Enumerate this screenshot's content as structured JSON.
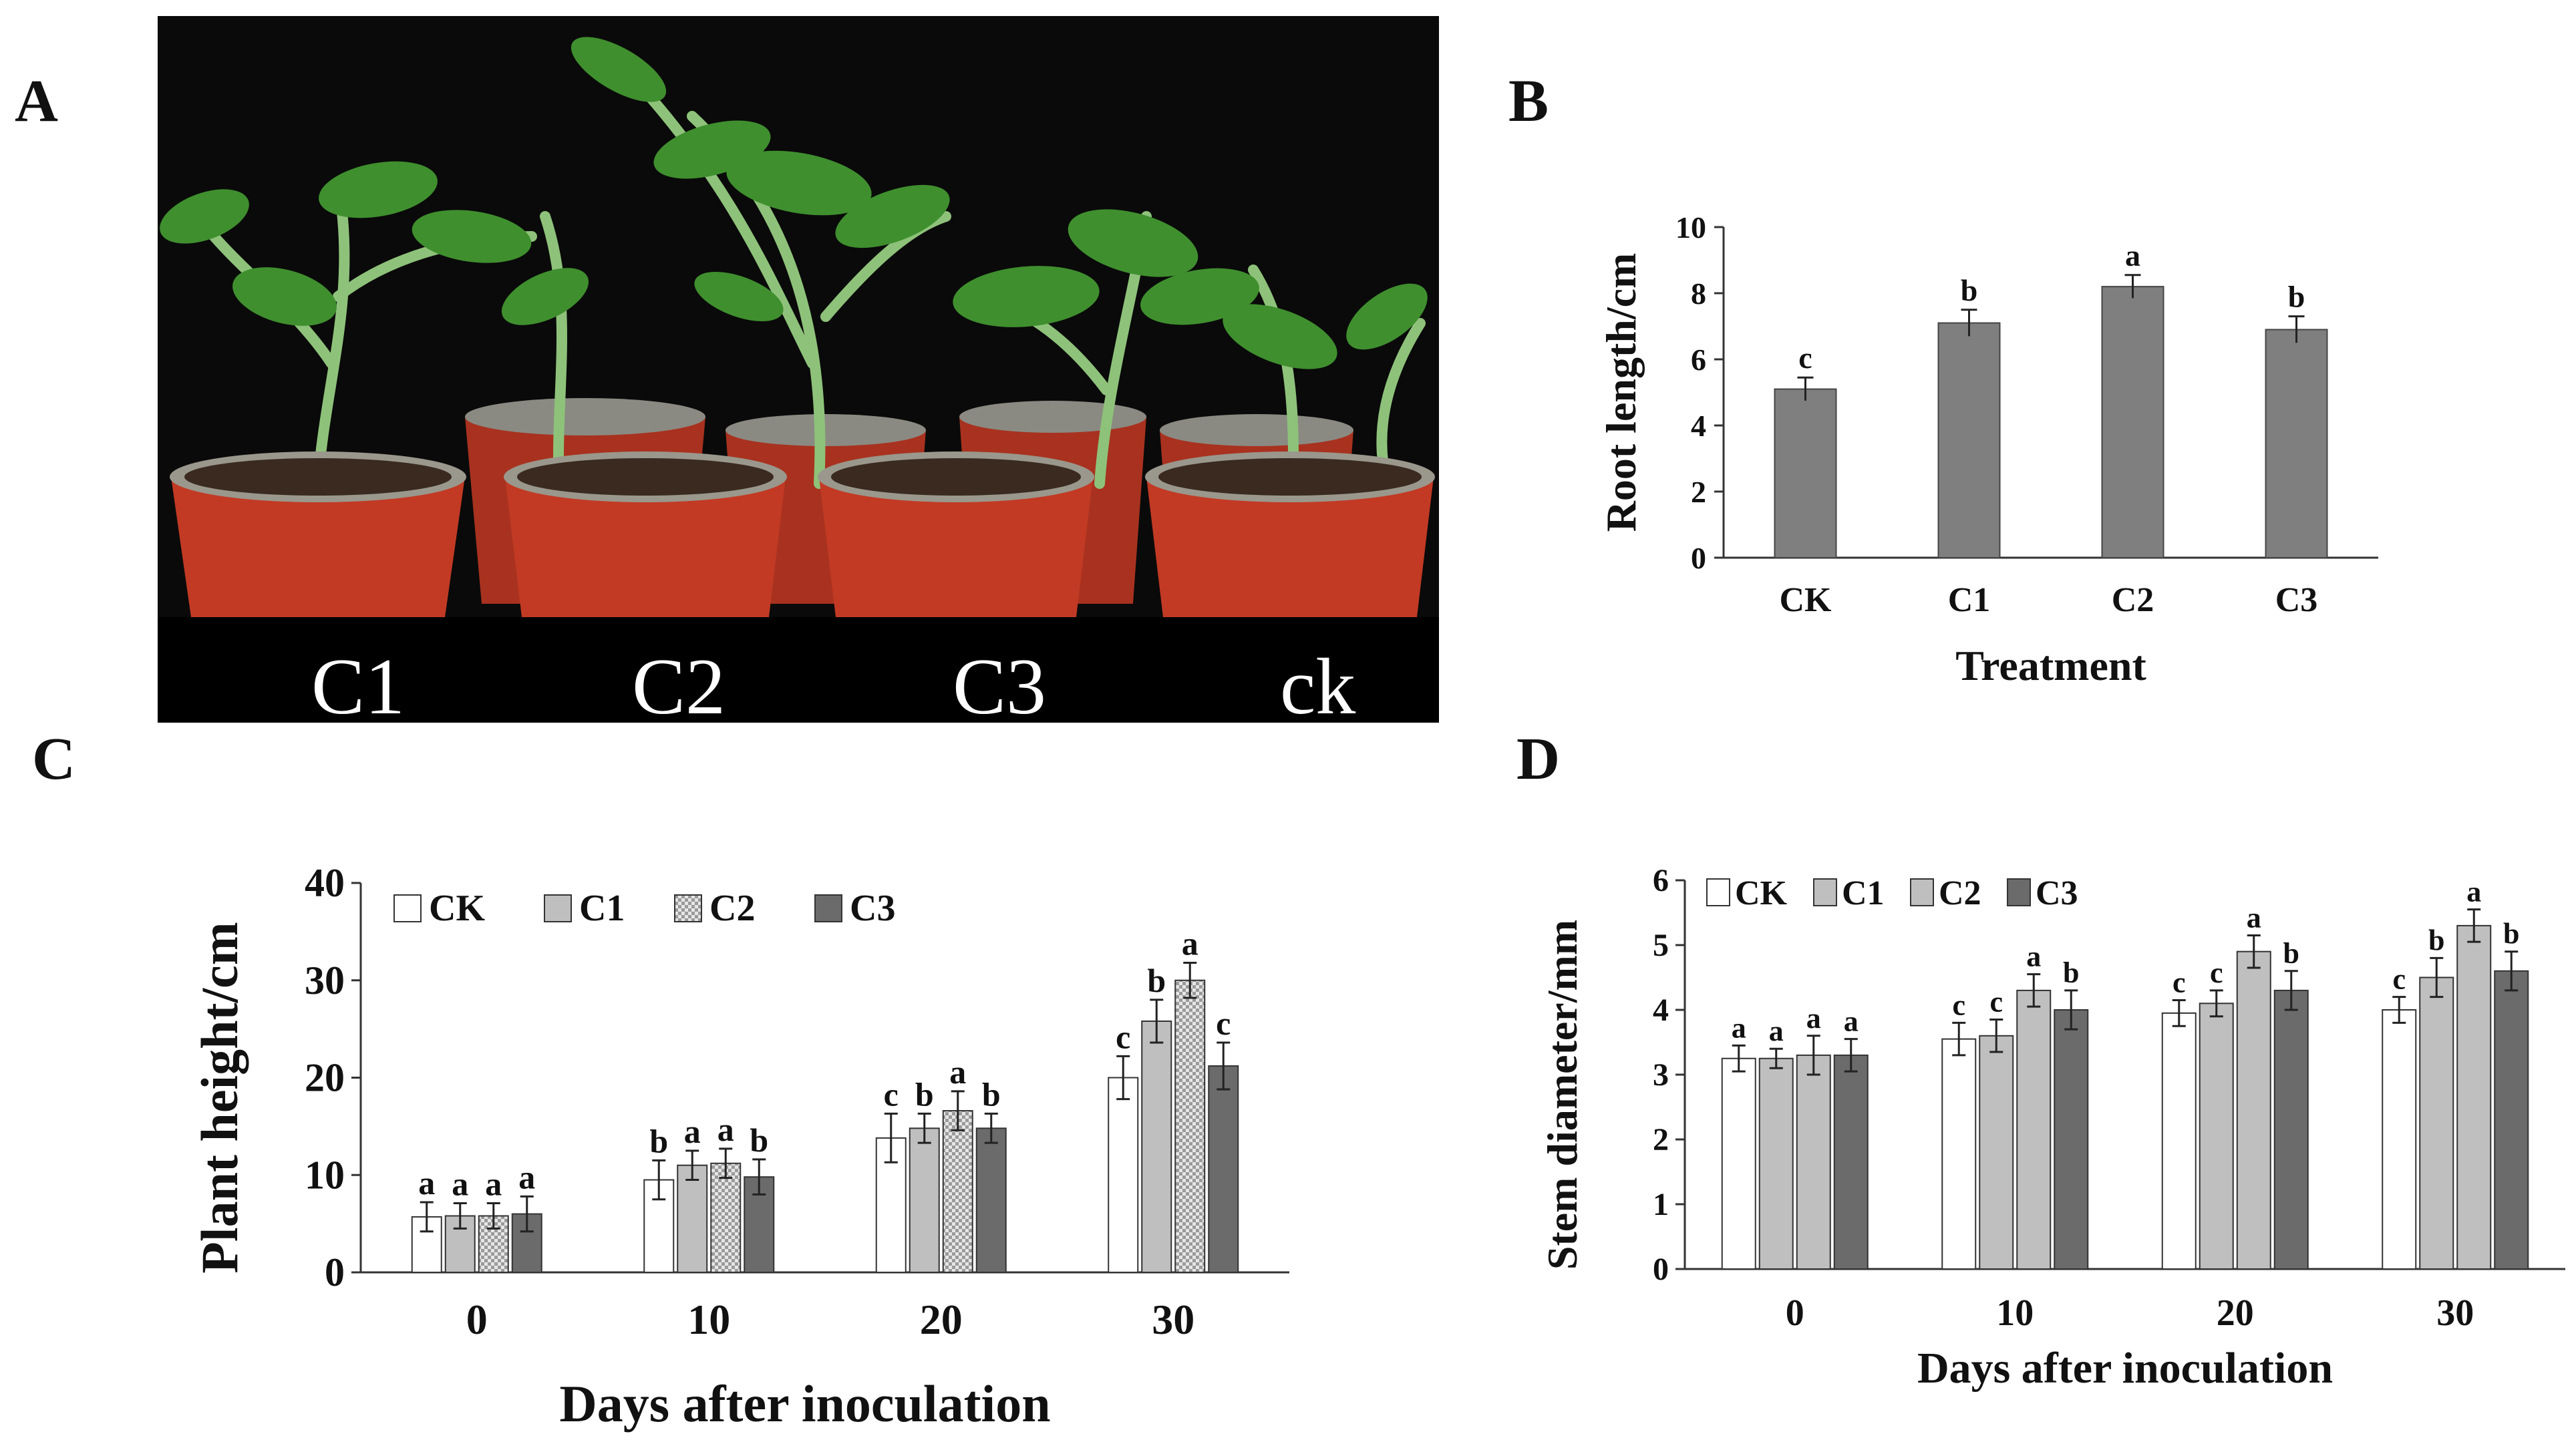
{
  "panels": {
    "A": "A",
    "B": "B",
    "C": "C",
    "D": "D"
  },
  "photo": {
    "labels": [
      "C1",
      "C2",
      "C3",
      "ck"
    ]
  },
  "colors": {
    "pot": "#c23a24",
    "pot_rim": "#8a8a82",
    "soil": "#3a2a20",
    "leaf": "#3f8f2e",
    "stem": "#8ec27a",
    "bar_dark": "#7f7f7f",
    "bar_light": "#bfbfbf",
    "bar_white": "#ffffff",
    "bar_darkest": "#6b6b6b"
  },
  "chart_data": [
    {
      "id": "B",
      "type": "bar",
      "title": "",
      "xlabel": "Treatment",
      "ylabel": "Root length/cm",
      "categories": [
        "CK",
        "C1",
        "C2",
        "C3"
      ],
      "values": [
        5.1,
        7.1,
        8.2,
        6.9
      ],
      "errors": [
        0.35,
        0.4,
        0.35,
        0.4
      ],
      "letters": [
        "c",
        "b",
        "a",
        "b"
      ],
      "ylim": [
        0,
        10
      ],
      "yticks": [
        "0",
        "2",
        "4",
        "6",
        "8",
        "10"
      ]
    },
    {
      "id": "C",
      "type": "bar",
      "xlabel": "Days after inoculation",
      "ylabel": "Plant  height/cm",
      "categories": [
        "0",
        "10",
        "20",
        "30"
      ],
      "legend": [
        "CK",
        "C1",
        "C2",
        "C3"
      ],
      "legend_position": "top-left",
      "series": [
        {
          "name": "CK",
          "values": [
            5.7,
            9.5,
            13.8,
            20.0
          ],
          "errors": [
            1.5,
            2.0,
            2.5,
            2.2
          ],
          "letters": [
            "a",
            "b",
            "c",
            "c"
          ]
        },
        {
          "name": "C1",
          "values": [
            5.8,
            11.0,
            14.8,
            25.8
          ],
          "errors": [
            1.3,
            1.5,
            1.5,
            2.2
          ],
          "letters": [
            "a",
            "a",
            "b",
            "b"
          ]
        },
        {
          "name": "C2",
          "values": [
            5.8,
            11.2,
            16.6,
            30.0
          ],
          "errors": [
            1.3,
            1.5,
            2.0,
            1.8
          ],
          "letters": [
            "a",
            "a",
            "a",
            "a"
          ]
        },
        {
          "name": "C3",
          "values": [
            6.0,
            9.8,
            14.8,
            21.2
          ],
          "errors": [
            1.8,
            1.8,
            1.5,
            2.4
          ],
          "letters": [
            "a",
            "b",
            "b",
            "c"
          ]
        }
      ],
      "ylim": [
        0,
        40
      ],
      "yticks": [
        "0",
        "10",
        "20",
        "30",
        "40"
      ]
    },
    {
      "id": "D",
      "type": "bar",
      "xlabel": "Days after inoculation",
      "ylabel": "Stem diameter/mm",
      "categories": [
        "0",
        "10",
        "20",
        "30"
      ],
      "legend": [
        "CK",
        "C1",
        "C2",
        "C3"
      ],
      "legend_position": "top-left",
      "series": [
        {
          "name": "CK",
          "values": [
            3.25,
            3.55,
            3.95,
            4.0
          ],
          "errors": [
            0.2,
            0.25,
            0.2,
            0.2
          ],
          "letters": [
            "a",
            "c",
            "c",
            "c"
          ]
        },
        {
          "name": "C1",
          "values": [
            3.25,
            3.6,
            4.1,
            4.5
          ],
          "errors": [
            0.15,
            0.25,
            0.2,
            0.3
          ],
          "letters": [
            "a",
            "c",
            "c",
            "b"
          ]
        },
        {
          "name": "C2",
          "values": [
            3.3,
            4.3,
            4.9,
            5.3
          ],
          "errors": [
            0.3,
            0.25,
            0.25,
            0.25
          ],
          "letters": [
            "a",
            "a",
            "a",
            "a"
          ]
        },
        {
          "name": "C3",
          "values": [
            3.3,
            4.0,
            4.3,
            4.6
          ],
          "errors": [
            0.25,
            0.3,
            0.3,
            0.3
          ],
          "letters": [
            "a",
            "b",
            "b",
            "b"
          ]
        }
      ],
      "ylim": [
        0,
        6
      ],
      "yticks": [
        "0",
        "1",
        "2",
        "3",
        "4",
        "5",
        "6"
      ]
    }
  ]
}
